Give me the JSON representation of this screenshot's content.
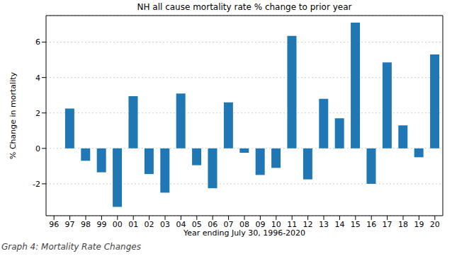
{
  "chart_data": {
    "type": "bar",
    "title": "NH all cause mortality rate % change to prior year",
    "x_label": "Year ending July 30, 1996-2020",
    "y_label": "% Change in mortality",
    "caption": "Graph 4: Mortality Rate Changes",
    "categories": [
      "96",
      "97",
      "98",
      "99",
      "00",
      "01",
      "02",
      "03",
      "04",
      "05",
      "06",
      "07",
      "08",
      "09",
      "10",
      "11",
      "12",
      "13",
      "14",
      "15",
      "16",
      "17",
      "18",
      "19",
      "20"
    ],
    "values": [
      null,
      2.25,
      -0.7,
      -1.35,
      -3.3,
      2.95,
      -1.45,
      -2.5,
      3.1,
      -0.95,
      -2.25,
      2.6,
      -0.25,
      -1.5,
      -1.1,
      6.35,
      -1.75,
      2.8,
      1.7,
      7.1,
      -2.0,
      4.85,
      1.3,
      -0.5,
      5.3
    ],
    "color": "#1f77b4",
    "ylim": [
      -3.8,
      7.5
    ],
    "yticks": [
      -2,
      0,
      2,
      4,
      6
    ],
    "grid": true
  }
}
